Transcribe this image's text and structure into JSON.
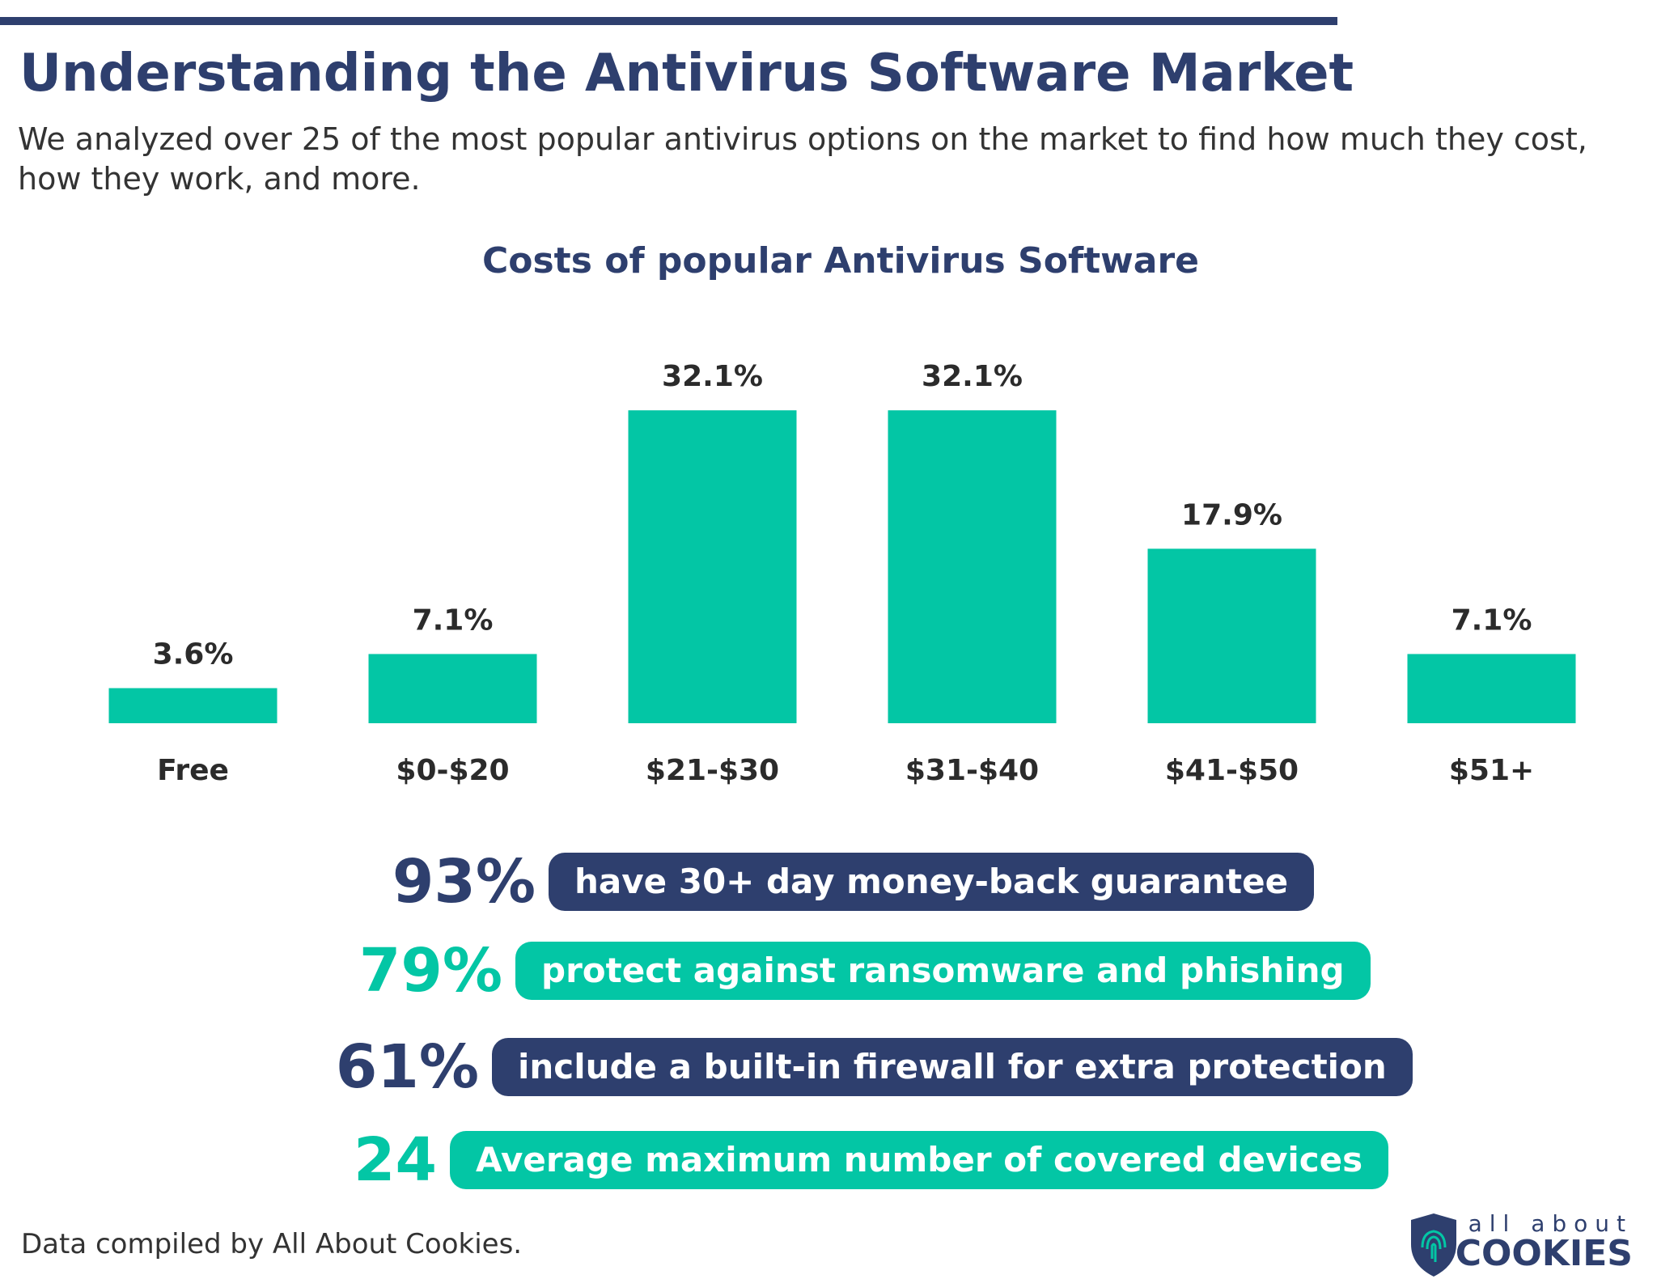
{
  "title": "Understanding the Antivirus Software Market",
  "subtitle": "We analyzed over 25 of the most popular antivirus options on the market to find how much they cost, how they work, and more.",
  "chart_data": {
    "type": "bar",
    "title": "Costs of popular Antivirus Software",
    "categories": [
      "Free",
      "$0-$20",
      "$21-$30",
      "$31-$40",
      "$41-$50",
      "$51+"
    ],
    "values": [
      3.6,
      7.1,
      32.1,
      32.1,
      17.9,
      7.1
    ],
    "value_labels": [
      "3.6%",
      "7.1%",
      "32.1%",
      "32.1%",
      "17.9%",
      "7.1%"
    ],
    "color": "#03c6a5"
  },
  "stats": [
    {
      "figure": "93%",
      "text": "have 30+ day money-back guarantee",
      "color": "#2e3f6e"
    },
    {
      "figure": "79%",
      "text": "protect against ransomware and phishing",
      "color": "#03c6a5"
    },
    {
      "figure": "61%",
      "text": "include a built-in firewall for extra protection",
      "color": "#2e3f6e"
    },
    {
      "figure": "24",
      "text": "Average maximum number of covered devices",
      "color": "#03c6a5"
    }
  ],
  "footer": "Data compiled by All About Cookies.",
  "logo": {
    "top": "all about",
    "bottom": "COOKIES"
  }
}
